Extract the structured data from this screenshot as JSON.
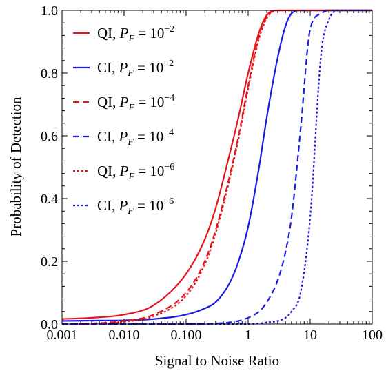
{
  "chart_data": {
    "type": "line",
    "title": "",
    "xlabel": "Signal to Noise Ratio",
    "ylabel": "Probability of Detection",
    "xscale": "log",
    "xlim": [
      0.001,
      100
    ],
    "ylim": [
      0,
      1
    ],
    "xticks": [
      0.001,
      0.01,
      0.1,
      1,
      10,
      100
    ],
    "xtick_labels": [
      "0.001",
      "0.010",
      "0.100",
      "1",
      "10",
      "100"
    ],
    "yticks": [
      0,
      0.2,
      0.4,
      0.6,
      0.8,
      1
    ],
    "ytick_labels": [
      "0.0",
      "0.2",
      "0.4",
      "0.6",
      "0.8",
      "1.0"
    ],
    "grid": false,
    "legend_position": "top-left",
    "x": [
      0.001,
      0.003,
      0.01,
      0.03,
      0.1,
      0.2,
      0.3,
      0.5,
      0.7,
      1,
      1.5,
      2,
      3,
      4,
      5,
      7,
      10,
      15,
      20,
      30,
      50,
      100
    ],
    "series": [
      {
        "legend_main": "QI,",
        "legend_exp": "−2",
        "color": "#e8141c",
        "style": "solid",
        "values": [
          0.016,
          0.02,
          0.03,
          0.06,
          0.16,
          0.27,
          0.37,
          0.54,
          0.66,
          0.8,
          0.93,
          0.985,
          1.0,
          1.0,
          1.0,
          1.0,
          1.0,
          1.0,
          1.0,
          1.0,
          1.0,
          1.0
        ]
      },
      {
        "legend_main": "CI,",
        "legend_exp": "−2",
        "color": "#1a1ae6",
        "style": "solid",
        "values": [
          0.01,
          0.011,
          0.012,
          0.016,
          0.03,
          0.05,
          0.07,
          0.13,
          0.2,
          0.31,
          0.5,
          0.66,
          0.85,
          0.95,
          0.99,
          1.0,
          1.0,
          1.0,
          1.0,
          1.0,
          1.0,
          1.0
        ]
      },
      {
        "legend_main": "QI,",
        "legend_exp": "−4",
        "color": "#e8141c",
        "style": "dashed",
        "values": [
          0.0,
          0.002,
          0.01,
          0.03,
          0.1,
          0.2,
          0.3,
          0.47,
          0.6,
          0.76,
          0.92,
          0.98,
          1.0,
          1.0,
          1.0,
          1.0,
          1.0,
          1.0,
          1.0,
          1.0,
          1.0,
          1.0
        ]
      },
      {
        "legend_main": "CI,",
        "legend_exp": "−4",
        "color": "#1a1ae6",
        "style": "dashed",
        "values": [
          0.0,
          0.0,
          0.0,
          0.0,
          0.0,
          0.0,
          0.002,
          0.005,
          0.01,
          0.02,
          0.04,
          0.07,
          0.14,
          0.23,
          0.34,
          0.62,
          0.94,
          0.99,
          1.0,
          1.0,
          1.0,
          1.0
        ]
      },
      {
        "legend_main": "QI,",
        "legend_exp": "−6",
        "color": "#e8141c",
        "style": "dotted",
        "values": [
          0.0,
          0.0,
          0.007,
          0.025,
          0.09,
          0.19,
          0.29,
          0.46,
          0.59,
          0.75,
          0.91,
          0.975,
          1.0,
          1.0,
          1.0,
          1.0,
          1.0,
          1.0,
          1.0,
          1.0,
          1.0,
          1.0
        ]
      },
      {
        "legend_main": "CI,",
        "legend_exp": "−6",
        "color": "#1a1ae6",
        "style": "dotted",
        "values": [
          0.0,
          0.0,
          0.0,
          0.0,
          0.0,
          0.0,
          0.0,
          0.0,
          0.0,
          0.0,
          0.002,
          0.005,
          0.01,
          0.02,
          0.04,
          0.1,
          0.34,
          0.86,
          0.97,
          1.0,
          1.0,
          1.0
        ]
      }
    ]
  }
}
